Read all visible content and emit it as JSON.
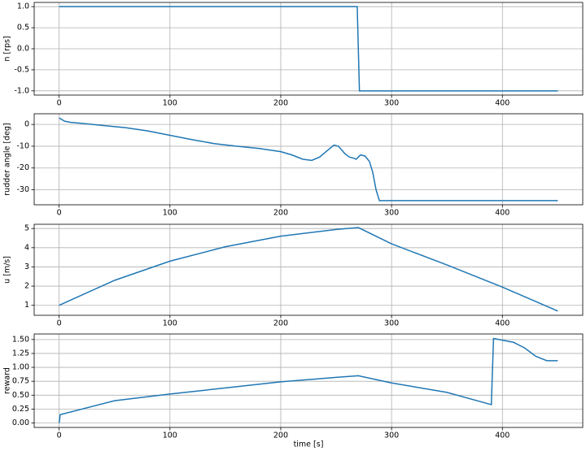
{
  "chart_data": [
    {
      "type": "line",
      "y_label": "n [rps]",
      "color": "#1f77b4",
      "grid": true,
      "x": [
        0,
        269,
        271,
        450
      ],
      "values": [
        1,
        1,
        -1,
        -1
      ],
      "xlim": [
        -22.5,
        472.5
      ],
      "xticks": [
        0,
        100,
        200,
        300,
        400
      ],
      "ylim": [
        -1.1,
        1.1
      ],
      "yticks": [
        {
          "value": -1,
          "label": "-1.0"
        },
        {
          "value": -0.5,
          "label": "-0.5"
        },
        {
          "value": 0,
          "label": "0.0"
        },
        {
          "value": 0.5,
          "label": "0.5"
        },
        {
          "value": 1,
          "label": "1.0"
        }
      ]
    },
    {
      "type": "line",
      "y_label": "rudder angle [deg]",
      "color": "#1f77b4",
      "grid": true,
      "x": [
        0,
        5,
        10,
        20,
        40,
        60,
        80,
        100,
        120,
        140,
        160,
        180,
        200,
        210,
        220,
        228,
        235,
        242,
        248,
        252,
        258,
        262,
        266,
        268,
        270,
        272,
        276,
        280,
        283,
        286,
        289,
        300,
        450
      ],
      "values": [
        3,
        1.5,
        1,
        0.5,
        -0.5,
        -1.5,
        -3,
        -5,
        -7,
        -8.8,
        -10,
        -11,
        -12.5,
        -14,
        -16,
        -16.5,
        -15,
        -12,
        -9.5,
        -10,
        -13.5,
        -15,
        -15.5,
        -16,
        -15,
        -14,
        -14.5,
        -17,
        -22,
        -30,
        -35,
        -35,
        -35
      ],
      "xlim": [
        -22.5,
        472.5
      ],
      "xticks": [
        0,
        100,
        200,
        300,
        400
      ],
      "ylim": [
        -36.9,
        4.9
      ],
      "yticks": [
        -30,
        -20,
        -10,
        0
      ]
    },
    {
      "type": "line",
      "y_label": "u [m/s]",
      "color": "#1f77b4",
      "grid": true,
      "x": [
        0,
        50,
        100,
        150,
        200,
        250,
        270,
        300,
        350,
        400,
        450
      ],
      "values": [
        1,
        2.3,
        3.3,
        4.05,
        4.6,
        4.95,
        5.05,
        4.2,
        3.1,
        1.95,
        0.7
      ],
      "xlim": [
        -22.5,
        472.5
      ],
      "xticks": [
        0,
        100,
        200,
        300,
        400
      ],
      "ylim": [
        0.48,
        5.22
      ],
      "yticks": [
        1,
        2,
        3,
        4,
        5
      ]
    },
    {
      "type": "line",
      "y_label": "reward",
      "x_label": "time [s]",
      "color": "#1f77b4",
      "grid": true,
      "x": [
        0,
        1,
        50,
        100,
        150,
        200,
        250,
        270,
        300,
        350,
        390,
        392,
        410,
        420,
        430,
        440,
        450
      ],
      "values": [
        0,
        0.15,
        0.4,
        0.52,
        0.63,
        0.74,
        0.82,
        0.85,
        0.72,
        0.55,
        0.33,
        1.52,
        1.45,
        1.35,
        1.2,
        1.12,
        1.12
      ],
      "xlim": [
        -22.5,
        472.5
      ],
      "xticks": [
        0,
        100,
        200,
        300,
        400
      ],
      "ylim": [
        -0.08,
        1.6
      ],
      "yticks": [
        {
          "value": 0,
          "label": "0.00"
        },
        {
          "value": 0.25,
          "label": "0.25"
        },
        {
          "value": 0.5,
          "label": "0.50"
        },
        {
          "value": 0.75,
          "label": "0.75"
        },
        {
          "value": 1,
          "label": "1.00"
        },
        {
          "value": 1.25,
          "label": "1.25"
        },
        {
          "value": 1.5,
          "label": "1.50"
        }
      ]
    }
  ]
}
